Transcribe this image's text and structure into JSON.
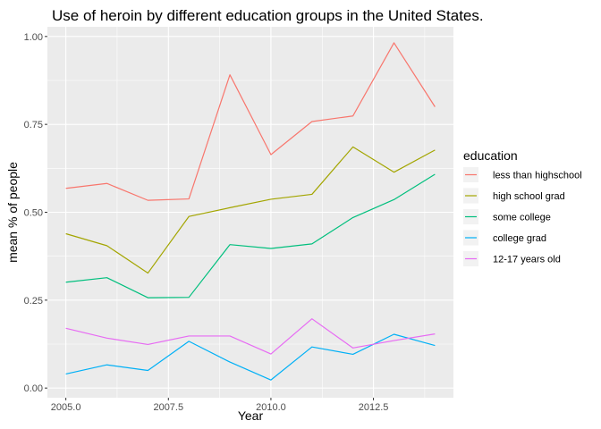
{
  "chart_data": {
    "type": "line",
    "title": "Use of heroin by different education groups in the United States.",
    "xlabel": "Year",
    "ylabel": "mean % of people",
    "xlim": [
      2004.55,
      2014.45
    ],
    "ylim": [
      -0.0275,
      1.0275
    ],
    "x_ticks": [
      2005.0,
      2007.5,
      2010.0,
      2012.5
    ],
    "x_tick_labels": [
      "2005.0",
      "2007.5",
      "2010.0",
      "2012.5"
    ],
    "y_ticks": [
      0.0,
      0.25,
      0.5,
      0.75,
      1.0
    ],
    "y_tick_labels": [
      "0.00",
      "0.25",
      "0.50",
      "0.75",
      "1.00"
    ],
    "grid": true,
    "legend": {
      "title": "education",
      "position": "right"
    },
    "x": [
      2005,
      2006,
      2007,
      2008,
      2009,
      2010,
      2011,
      2012,
      2013,
      2014
    ],
    "series": [
      {
        "name": "less than highschool",
        "color": "#F8766D",
        "values": [
          0.568,
          0.582,
          0.534,
          0.538,
          0.891,
          0.664,
          0.758,
          0.774,
          0.982,
          0.8
        ]
      },
      {
        "name": "high school grad",
        "color": "#A3A500",
        "values": [
          0.439,
          0.405,
          0.327,
          0.488,
          0.513,
          0.537,
          0.551,
          0.686,
          0.614,
          0.677
        ]
      },
      {
        "name": "some college",
        "color": "#00BF7D",
        "values": [
          0.301,
          0.314,
          0.257,
          0.258,
          0.408,
          0.397,
          0.41,
          0.485,
          0.536,
          0.608
        ]
      },
      {
        "name": "college grad",
        "color": "#00B0F6",
        "values": [
          0.04,
          0.066,
          0.05,
          0.133,
          0.074,
          0.023,
          0.117,
          0.096,
          0.153,
          0.121
        ]
      },
      {
        "name": "12-17 years old",
        "color": "#E76BF3",
        "values": [
          0.17,
          0.142,
          0.124,
          0.148,
          0.148,
          0.097,
          0.197,
          0.114,
          0.135,
          0.154
        ]
      }
    ]
  }
}
